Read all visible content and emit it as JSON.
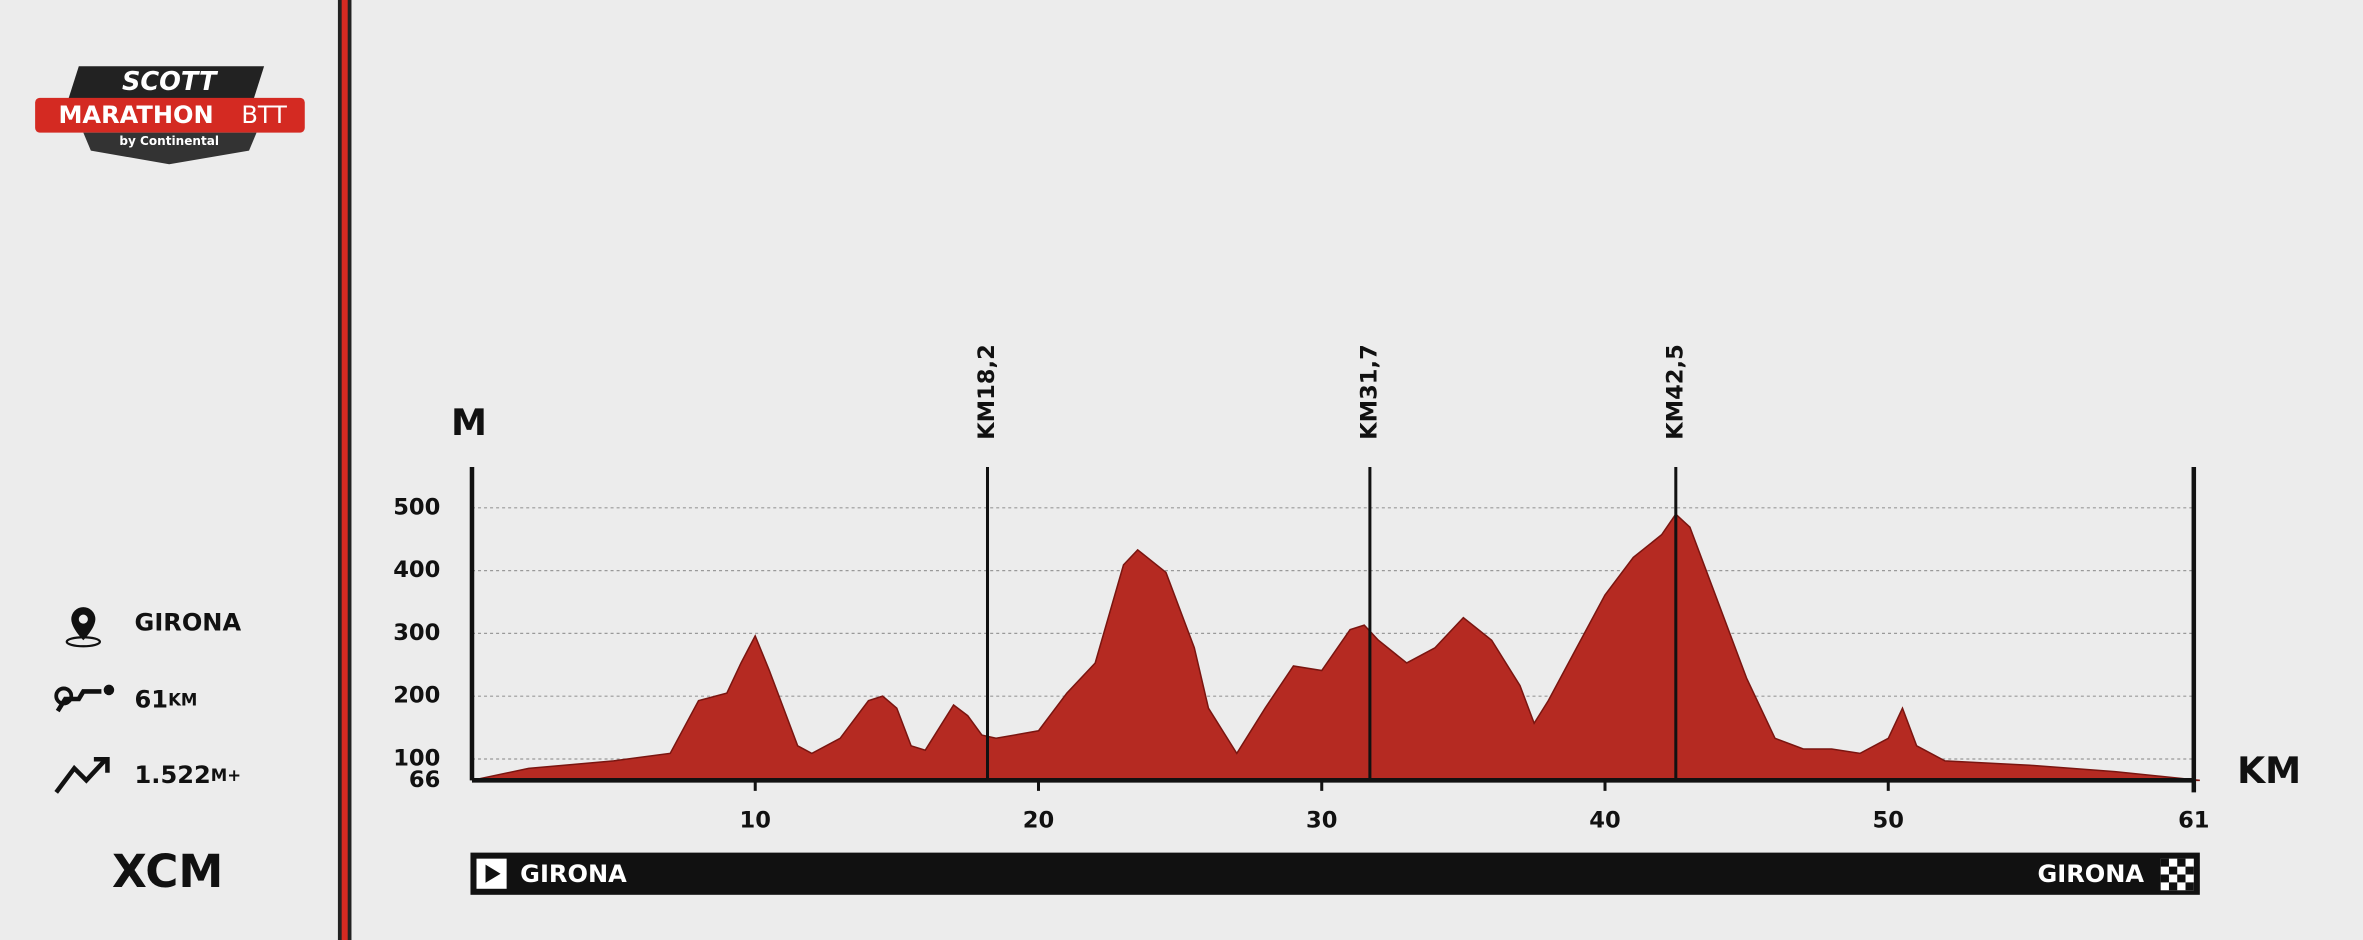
{
  "logo": {
    "brand": "SCOTT",
    "event": "MARATHON",
    "event_suffix": "BTT",
    "sponsor": "by Continental"
  },
  "sidebar": {
    "location": "GIRONA",
    "distance": "61",
    "distance_unit": "KM",
    "climb": "1.522",
    "climb_unit": "M+",
    "category": "XCM"
  },
  "chart_data": {
    "type": "area",
    "color": "#b52a22",
    "y_label": "M",
    "x_label": "KM",
    "start_label": "GIRONA",
    "finish_label": "GIRONA",
    "xlim": [
      0,
      61
    ],
    "xticks": [
      10,
      20,
      30,
      40,
      50,
      61
    ],
    "ylim": [
      66,
      565
    ],
    "yticks": [
      66,
      100,
      200,
      300,
      400,
      500
    ],
    "grid": true,
    "markers": [
      {
        "x": 18.2,
        "label": "KM18,2"
      },
      {
        "x": 31.7,
        "label": "KM31,7"
      },
      {
        "x": 42.5,
        "label": "KM42,5"
      }
    ],
    "x": [
      0,
      2,
      5,
      7,
      8,
      9,
      9.5,
      10,
      10.5,
      11,
      11.5,
      12,
      13,
      14,
      14.5,
      15,
      15.5,
      16,
      17,
      17.5,
      18,
      18.5,
      20,
      21,
      22,
      23,
      23.5,
      24.5,
      25.5,
      26,
      27,
      28,
      29,
      30,
      31,
      31.5,
      32,
      33,
      34,
      35,
      36,
      37,
      37.5,
      38,
      39,
      40,
      41,
      42,
      42.5,
      43,
      44,
      45,
      46,
      47,
      48,
      49,
      50,
      50.5,
      51,
      52,
      55,
      58,
      61
    ],
    "values": [
      66,
      85,
      97,
      109,
      193,
      205,
      253,
      296,
      241,
      181,
      121,
      109,
      133,
      193,
      200,
      181,
      121,
      114,
      186,
      169,
      138,
      133,
      145,
      205,
      253,
      409,
      433,
      397,
      277,
      181,
      109,
      181,
      248,
      241,
      306,
      313,
      289,
      253,
      277,
      325,
      289,
      217,
      157,
      193,
      277,
      361,
      421,
      457,
      490,
      469,
      349,
      229,
      133,
      116,
      116,
      109,
      133,
      181,
      121,
      97,
      90,
      80,
      66
    ]
  }
}
